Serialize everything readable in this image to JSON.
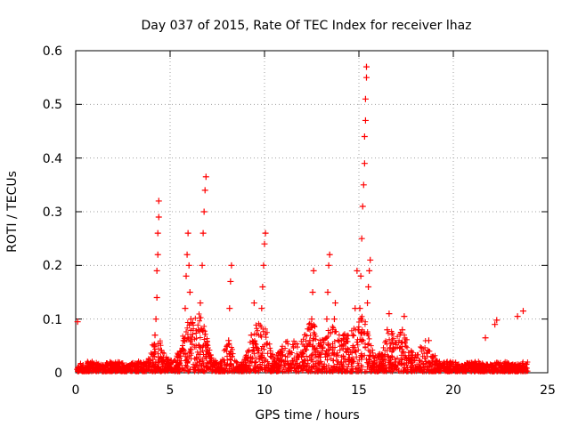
{
  "chart_data": {
    "type": "scatter",
    "title": "Day 037 of 2015, Rate Of TEC Index for receiver lhaz",
    "xlabel": "GPS time / hours",
    "ylabel": "ROTI / TECUs",
    "xlim": [
      0,
      25
    ],
    "ylim": [
      0,
      0.6
    ],
    "xticks": [
      "0",
      "5",
      "10",
      "15",
      "20",
      "25"
    ],
    "yticks": [
      "0",
      "0.1",
      "0.2",
      "0.3",
      "0.4",
      "0.5",
      "0.6"
    ],
    "grid": true,
    "marker": "+",
    "color": "#ff0000",
    "series": [
      {
        "name": "ROTI",
        "points": [
          [
            0.1,
            0.095
          ],
          [
            4.1,
            0.03
          ],
          [
            4.15,
            0.05
          ],
          [
            4.2,
            0.07
          ],
          [
            4.25,
            0.1
          ],
          [
            4.3,
            0.14
          ],
          [
            4.3,
            0.19
          ],
          [
            4.35,
            0.22
          ],
          [
            4.35,
            0.26
          ],
          [
            4.4,
            0.29
          ],
          [
            4.4,
            0.32
          ],
          [
            5.75,
            0.06
          ],
          [
            5.8,
            0.12
          ],
          [
            5.85,
            0.18
          ],
          [
            5.9,
            0.22
          ],
          [
            5.95,
            0.26
          ],
          [
            6.0,
            0.2
          ],
          [
            6.05,
            0.15
          ],
          [
            6.1,
            0.1
          ],
          [
            6.5,
            0.08
          ],
          [
            6.6,
            0.13
          ],
          [
            6.7,
            0.2
          ],
          [
            6.75,
            0.26
          ],
          [
            6.8,
            0.3
          ],
          [
            6.85,
            0.34
          ],
          [
            6.9,
            0.365
          ],
          [
            8.1,
            0.06
          ],
          [
            8.15,
            0.12
          ],
          [
            8.2,
            0.17
          ],
          [
            8.25,
            0.2
          ],
          [
            9.3,
            0.07
          ],
          [
            9.45,
            0.13
          ],
          [
            9.8,
            0.07
          ],
          [
            9.85,
            0.12
          ],
          [
            9.9,
            0.16
          ],
          [
            9.95,
            0.2
          ],
          [
            10.0,
            0.24
          ],
          [
            10.05,
            0.26
          ],
          [
            12.4,
            0.06
          ],
          [
            12.5,
            0.1
          ],
          [
            12.55,
            0.15
          ],
          [
            12.6,
            0.19
          ],
          [
            13.3,
            0.1
          ],
          [
            13.35,
            0.15
          ],
          [
            13.4,
            0.2
          ],
          [
            13.45,
            0.22
          ],
          [
            13.7,
            0.1
          ],
          [
            13.75,
            0.13
          ],
          [
            14.8,
            0.12
          ],
          [
            14.9,
            0.19
          ],
          [
            15.0,
            0.08
          ],
          [
            15.05,
            0.12
          ],
          [
            15.1,
            0.18
          ],
          [
            15.15,
            0.25
          ],
          [
            15.2,
            0.31
          ],
          [
            15.25,
            0.35
          ],
          [
            15.3,
            0.39
          ],
          [
            15.3,
            0.44
          ],
          [
            15.35,
            0.47
          ],
          [
            15.35,
            0.51
          ],
          [
            15.4,
            0.55
          ],
          [
            15.4,
            0.57
          ],
          [
            15.45,
            0.13
          ],
          [
            15.5,
            0.16
          ],
          [
            15.55,
            0.19
          ],
          [
            15.6,
            0.21
          ],
          [
            16.5,
            0.08
          ],
          [
            16.6,
            0.11
          ],
          [
            17.3,
            0.08
          ],
          [
            17.4,
            0.105
          ],
          [
            18.7,
            0.06
          ],
          [
            21.7,
            0.065
          ],
          [
            22.2,
            0.09
          ],
          [
            22.3,
            0.098
          ],
          [
            23.4,
            0.105
          ],
          [
            23.7,
            0.115
          ]
        ]
      }
    ]
  }
}
